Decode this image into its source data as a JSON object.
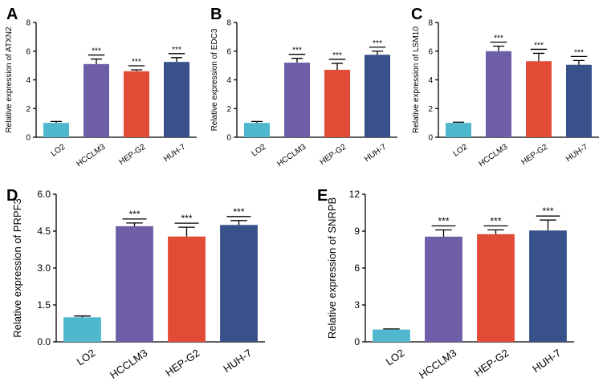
{
  "figure": {
    "bar_colors": [
      "#4fb8cf",
      "#6e5ea8",
      "#e24b36",
      "#39518a"
    ],
    "significance_label": "***"
  },
  "chart_data": [
    {
      "panel": "A",
      "type": "bar",
      "categories": [
        "LO2",
        "HCCLM3",
        "HEP-G2",
        "HUH-7"
      ],
      "values": [
        1.0,
        5.1,
        4.6,
        5.25
      ],
      "errors": [
        0.1,
        0.35,
        0.1,
        0.3
      ],
      "significance": [
        "",
        "***",
        "***",
        "***"
      ],
      "ylabel": "Relative expression of ATXN2",
      "ylim": [
        0,
        8
      ],
      "yticks": [
        0,
        2,
        4,
        6,
        8
      ],
      "ytick_labels": [
        "0",
        "2",
        "4",
        "6",
        "8"
      ]
    },
    {
      "panel": "B",
      "type": "bar",
      "categories": [
        "LO2",
        "HCCLM3",
        "HEP-G2",
        "HUH-7"
      ],
      "values": [
        1.0,
        5.2,
        4.7,
        5.75
      ],
      "errors": [
        0.1,
        0.3,
        0.45,
        0.25
      ],
      "significance": [
        "",
        "***",
        "***",
        "***"
      ],
      "ylabel": "Relative expression of EDC3",
      "ylim": [
        0,
        8
      ],
      "yticks": [
        0,
        2,
        4,
        6,
        8
      ],
      "ytick_labels": [
        "0",
        "2",
        "4",
        "6",
        "8"
      ]
    },
    {
      "panel": "C",
      "type": "bar",
      "categories": [
        "LO2",
        "HCCLM3",
        "HEP-G2",
        "HUH-7"
      ],
      "values": [
        1.0,
        6.0,
        5.3,
        5.05
      ],
      "errors": [
        0.05,
        0.35,
        0.55,
        0.3
      ],
      "significance": [
        "",
        "***",
        "***",
        "***"
      ],
      "ylabel": "Relative expression of LSM10",
      "ylim": [
        0,
        8
      ],
      "yticks": [
        0,
        2,
        4,
        6,
        8
      ],
      "ytick_labels": [
        "0",
        "2",
        "4",
        "6",
        "8"
      ]
    },
    {
      "panel": "D",
      "type": "bar",
      "categories": [
        "LO2",
        "HCCLM3",
        "HEP-G2",
        "HUH-7"
      ],
      "values": [
        1.0,
        4.7,
        4.28,
        4.75
      ],
      "errors": [
        0.05,
        0.13,
        0.38,
        0.18
      ],
      "significance": [
        "",
        "***",
        "***",
        "***"
      ],
      "ylabel": "Relative expression of PRPF3",
      "ylim": [
        0,
        6
      ],
      "yticks": [
        0,
        1.5,
        3,
        4.5,
        6
      ],
      "ytick_labels": [
        "0.0",
        "1.5",
        "3.0",
        "4.5",
        "6.0"
      ]
    },
    {
      "panel": "E",
      "type": "bar",
      "categories": [
        "LO2",
        "HCCLM3",
        "HEP-G2",
        "HUH-7"
      ],
      "values": [
        1.0,
        8.55,
        8.75,
        9.05
      ],
      "errors": [
        0.05,
        0.55,
        0.35,
        0.85
      ],
      "significance": [
        "",
        "***",
        "***",
        "***"
      ],
      "ylabel": "Relative expression of SNRPB",
      "ylim": [
        0,
        12
      ],
      "yticks": [
        0,
        3,
        6,
        9,
        12
      ],
      "ytick_labels": [
        "0",
        "3",
        "6",
        "9",
        "12"
      ]
    }
  ]
}
